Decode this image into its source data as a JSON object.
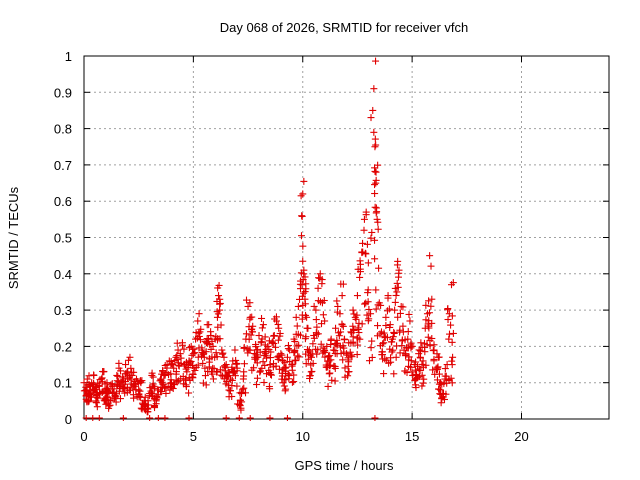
{
  "chart_data": {
    "type": "scatter",
    "title": "Day 068 of 2026, SRMTID for receiver vfch",
    "xlabel": "GPS time / hours",
    "ylabel": "SRMTID / TECUs",
    "xlim": [
      0,
      24
    ],
    "ylim": [
      0,
      1
    ],
    "xticks": [
      0,
      5,
      10,
      15,
      20
    ],
    "yticks": [
      0,
      0.1,
      0.2,
      0.3,
      0.4,
      0.5,
      0.6,
      0.7,
      0.8,
      0.9,
      1
    ],
    "xtick_labels": [
      "0",
      "5",
      "10",
      "15",
      "20"
    ],
    "ytick_labels": [
      "0",
      "0.1",
      "0.2",
      "0.3",
      "0.4",
      "0.5",
      "0.6",
      "0.7",
      "0.8",
      "0.9",
      "1"
    ],
    "grid": true,
    "marker": "+",
    "color": "#e00000",
    "series": [
      {
        "name": "SRMTID",
        "points": [
          [
            0.0,
            0.1
          ],
          [
            0.1,
            0.08
          ],
          [
            0.15,
            0.11
          ],
          [
            0.2,
            0.07
          ],
          [
            0.3,
            0.09
          ],
          [
            0.35,
            0.1
          ],
          [
            0.45,
            0.12
          ],
          [
            0.5,
            0.08
          ],
          [
            0.6,
            0.06
          ],
          [
            0.7,
            0.09
          ],
          [
            0.8,
            0.11
          ],
          [
            0.9,
            0.13
          ],
          [
            1.0,
            0.07
          ],
          [
            1.05,
            0.1
          ],
          [
            1.1,
            0.08
          ],
          [
            1.2,
            0.05
          ],
          [
            1.3,
            0.09
          ],
          [
            1.4,
            0.06
          ],
          [
            1.5,
            0.12
          ],
          [
            1.6,
            0.14
          ],
          [
            1.7,
            0.1
          ],
          [
            1.8,
            0.11
          ],
          [
            1.9,
            0.15
          ],
          [
            2.0,
            0.13
          ],
          [
            2.1,
            0.17
          ],
          [
            2.2,
            0.12
          ],
          [
            2.3,
            0.09
          ],
          [
            2.4,
            0.11
          ],
          [
            2.5,
            0.08
          ],
          [
            2.6,
            0.1
          ],
          [
            2.7,
            0.04
          ],
          [
            2.8,
            0.06
          ],
          [
            2.9,
            0.03
          ],
          [
            3.0,
            0.07
          ],
          [
            3.1,
            0.12
          ],
          [
            3.2,
            0.09
          ],
          [
            3.3,
            0.05
          ],
          [
            3.4,
            0.08
          ],
          [
            3.5,
            0.11
          ],
          [
            3.6,
            0.13
          ],
          [
            3.7,
            0.12
          ],
          [
            3.8,
            0.15
          ],
          [
            3.9,
            0.16
          ],
          [
            4.0,
            0.1
          ],
          [
            4.1,
            0.14
          ],
          [
            4.2,
            0.17
          ],
          [
            4.3,
            0.19
          ],
          [
            4.4,
            0.18
          ],
          [
            4.5,
            0.21
          ],
          [
            4.6,
            0.15
          ],
          [
            4.7,
            0.13
          ],
          [
            4.8,
            0.16
          ],
          [
            4.9,
            0.2
          ],
          [
            5.0,
            0.18
          ],
          [
            5.1,
            0.22
          ],
          [
            5.2,
            0.27
          ],
          [
            5.3,
            0.24
          ],
          [
            5.4,
            0.19
          ],
          [
            5.5,
            0.17
          ],
          [
            5.6,
            0.21
          ],
          [
            5.7,
            0.26
          ],
          [
            5.8,
            0.23
          ],
          [
            5.9,
            0.2
          ],
          [
            6.0,
            0.22
          ],
          [
            6.1,
            0.28
          ],
          [
            6.15,
            0.34
          ],
          [
            6.2,
            0.3
          ],
          [
            6.3,
            0.19
          ],
          [
            6.4,
            0.17
          ],
          [
            6.5,
            0.15
          ],
          [
            6.6,
            0.12
          ],
          [
            6.7,
            0.11
          ],
          [
            6.8,
            0.16
          ],
          [
            6.9,
            0.19
          ],
          [
            7.0,
            0.14
          ],
          [
            7.1,
            0.04
          ],
          [
            7.2,
            0.07
          ],
          [
            7.3,
            0.13
          ],
          [
            7.4,
            0.22
          ],
          [
            7.5,
            0.31
          ],
          [
            7.6,
            0.28
          ],
          [
            7.7,
            0.24
          ],
          [
            7.8,
            0.17
          ],
          [
            7.9,
            0.19
          ],
          [
            8.0,
            0.23
          ],
          [
            8.1,
            0.21
          ],
          [
            8.2,
            0.26
          ],
          [
            8.3,
            0.18
          ],
          [
            8.4,
            0.2
          ],
          [
            8.5,
            0.15
          ],
          [
            8.6,
            0.21
          ],
          [
            8.7,
            0.23
          ],
          [
            8.8,
            0.27
          ],
          [
            8.9,
            0.25
          ],
          [
            9.0,
            0.18
          ],
          [
            9.1,
            0.16
          ],
          [
            9.2,
            0.14
          ],
          [
            9.3,
            0.17
          ],
          [
            9.4,
            0.19
          ],
          [
            9.5,
            0.15
          ],
          [
            9.6,
            0.22
          ],
          [
            9.7,
            0.28
          ],
          [
            9.8,
            0.31
          ],
          [
            9.9,
            0.38
          ],
          [
            9.95,
            0.56
          ],
          [
            10.0,
            0.62
          ],
          [
            10.05,
            0.41
          ],
          [
            10.1,
            0.33
          ],
          [
            10.2,
            0.25
          ],
          [
            10.3,
            0.19
          ],
          [
            10.4,
            0.17
          ],
          [
            10.5,
            0.23
          ],
          [
            10.6,
            0.3
          ],
          [
            10.7,
            0.36
          ],
          [
            10.8,
            0.4
          ],
          [
            10.9,
            0.32
          ],
          [
            11.0,
            0.27
          ],
          [
            11.1,
            0.2
          ],
          [
            11.2,
            0.16
          ],
          [
            11.3,
            0.22
          ],
          [
            11.4,
            0.19
          ],
          [
            11.5,
            0.25
          ],
          [
            11.6,
            0.31
          ],
          [
            11.7,
            0.29
          ],
          [
            11.8,
            0.34
          ],
          [
            11.9,
            0.22
          ],
          [
            12.0,
            0.18
          ],
          [
            12.1,
            0.21
          ],
          [
            12.2,
            0.24
          ],
          [
            12.3,
            0.3
          ],
          [
            12.4,
            0.28
          ],
          [
            12.5,
            0.34
          ],
          [
            12.6,
            0.39
          ],
          [
            12.7,
            0.46
          ],
          [
            12.8,
            0.52
          ],
          [
            12.9,
            0.57
          ],
          [
            13.0,
            0.43
          ],
          [
            13.1,
            0.29
          ],
          [
            13.2,
            0.85
          ],
          [
            13.25,
            0.91
          ],
          [
            13.3,
            0.75
          ],
          [
            13.35,
            0.68
          ],
          [
            13.4,
            0.55
          ],
          [
            13.5,
            0.32
          ],
          [
            13.6,
            0.24
          ],
          [
            13.7,
            0.21
          ],
          [
            13.8,
            0.28
          ],
          [
            13.9,
            0.34
          ],
          [
            14.0,
            0.26
          ],
          [
            14.1,
            0.22
          ],
          [
            14.2,
            0.3
          ],
          [
            14.3,
            0.35
          ],
          [
            14.4,
            0.41
          ],
          [
            14.5,
            0.31
          ],
          [
            14.6,
            0.24
          ],
          [
            14.7,
            0.18
          ],
          [
            14.8,
            0.22
          ],
          [
            14.9,
            0.27
          ],
          [
            15.0,
            0.2
          ],
          [
            15.1,
            0.15
          ],
          [
            15.2,
            0.12
          ],
          [
            15.3,
            0.18
          ],
          [
            15.4,
            0.21
          ],
          [
            15.5,
            0.16
          ],
          [
            15.6,
            0.25
          ],
          [
            15.7,
            0.29
          ],
          [
            15.8,
            0.45
          ],
          [
            15.9,
            0.33
          ],
          [
            16.0,
            0.19
          ],
          [
            16.1,
            0.14
          ],
          [
            16.2,
            0.17
          ],
          [
            16.3,
            0.1
          ],
          [
            16.4,
            0.07
          ],
          [
            16.5,
            0.11
          ],
          [
            16.6,
            0.15
          ],
          [
            16.7,
            0.29
          ],
          [
            16.8,
            0.37
          ],
          [
            16.85,
            0.17
          ]
        ]
      }
    ],
    "zero_points_x": [
      0.1,
      0.4,
      0.7,
      1.8,
      3.0,
      3.4,
      3.7,
      4.8,
      6.5,
      7.1,
      7.6,
      8.5,
      9.3,
      13.3
    ]
  }
}
